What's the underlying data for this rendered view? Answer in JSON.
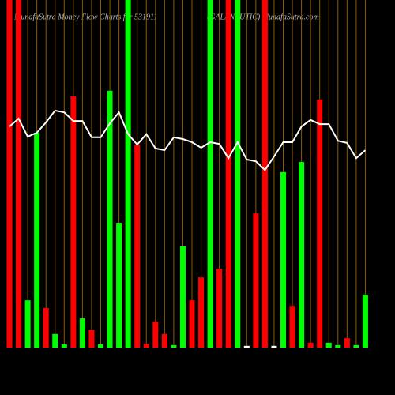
{
  "chart_data": {
    "type": "bar",
    "title": "MunafaSutra  Money Flow  Charts for 531911",
    "subtitle": "(GALANAUTIC) MunafaSutra.com",
    "values": [
      100,
      100,
      13.6,
      61.8,
      11.4,
      3.9,
      0.9,
      72.3,
      8.4,
      5,
      0.9,
      73.9,
      35.9,
      100,
      58.4,
      1.1,
      7.5,
      3.9,
      0.7,
      29.1,
      13.6,
      20.2,
      100,
      22.7,
      100,
      100,
      0.5,
      38.6,
      100,
      0.5,
      50.5,
      12,
      53.4,
      1.4,
      71.4,
      1.4,
      0.7,
      2.7,
      0.7,
      15.2
    ],
    "colors": [
      "#ff0000",
      "#ff0000",
      "#00ff00",
      "#00ff00",
      "#ff0000",
      "#00ff00",
      "#00ff00",
      "#ff0000",
      "#00ff00",
      "#ff0000",
      "#00ff00",
      "#00ff00",
      "#00ff00",
      "#00ff00",
      "#ff0000",
      "#ff0000",
      "#ff0000",
      "#ff0000",
      "#00ff00",
      "#00ff00",
      "#ff0000",
      "#ff0000",
      "#00ff00",
      "#ff0000",
      "#ff0000",
      "#00ff00",
      "#ffffff",
      "#ff0000",
      "#ff0000",
      "#ffffff",
      "#00ff00",
      "#ff0000",
      "#00ff00",
      "#ff0000",
      "#ff0000",
      "#00ff00",
      "#00ff00",
      "#ff0000",
      "#00ff00",
      "#00ff00"
    ],
    "line": {
      "color": "#ffffff",
      "values": [
        63.6,
        65.9,
        60.7,
        61.8,
        64.8,
        68.2,
        67.7,
        65.2,
        65.2,
        60.5,
        60.5,
        64.5,
        67.7,
        61.4,
        58.4,
        61.4,
        57.3,
        56.8,
        60.5,
        60,
        59.1,
        57.5,
        59.1,
        58.6,
        54.5,
        59.1,
        54.1,
        53.6,
        51.1,
        55,
        59.1,
        59.1,
        63.6,
        65.5,
        64.3,
        64.3,
        59.5,
        58.9,
        54.5,
        56.8
      ]
    },
    "ylim": [
      0,
      100
    ],
    "gridline_color": "#8b5a00"
  }
}
